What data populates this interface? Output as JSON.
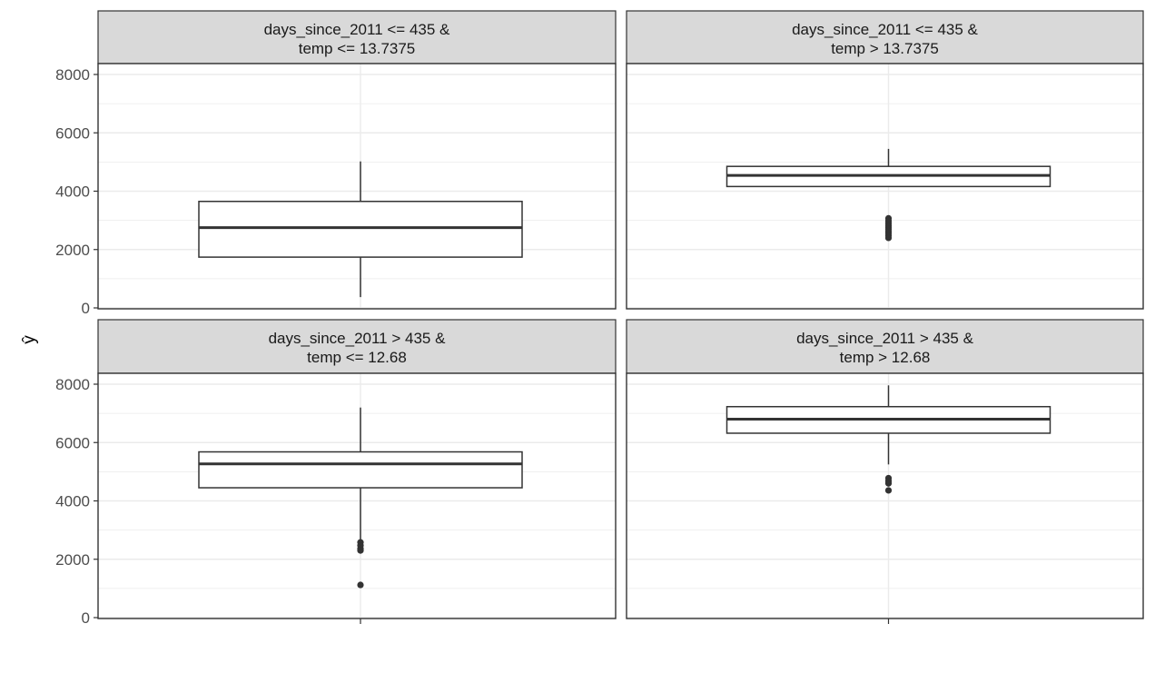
{
  "chart_data": {
    "type": "boxplot",
    "ylabel": "ŷ",
    "ylim": [
      0,
      8000
    ],
    "yticks": [
      0,
      2000,
      4000,
      6000,
      8000
    ],
    "grid": true,
    "legend": "none",
    "colors": {
      "strip_fill": "#d9d9d9",
      "panel_border": "#333333",
      "grid": "#ebebeb",
      "box_line": "#333333",
      "outlier": "#333333"
    },
    "panels": [
      {
        "strip_lines": [
          "days_since_2011 <= 435 &",
          "temp <= 13.7375"
        ],
        "box": {
          "whisker_low": 370,
          "q1": 1740,
          "median": 2750,
          "q3": 3650,
          "whisker_high": 5020
        },
        "outliers": []
      },
      {
        "strip_lines": [
          "days_since_2011 <= 435 &",
          "temp > 13.7375"
        ],
        "box": {
          "whisker_low": 4160,
          "q1": 4160,
          "median": 4540,
          "q3": 4850,
          "whisker_high": 5450
        },
        "outliers": [
          3070,
          2980,
          2900,
          2830,
          2760,
          2700,
          2620,
          2560,
          2480,
          2400
        ]
      },
      {
        "strip_lines": [
          "days_since_2011 > 435 &",
          "temp <= 12.68"
        ],
        "box": {
          "whisker_low": 2600,
          "q1": 4450,
          "median": 5270,
          "q3": 5680,
          "whisker_high": 7200
        },
        "outliers": [
          2580,
          2470,
          2360,
          2300,
          1120
        ]
      },
      {
        "strip_lines": [
          "days_since_2011 > 435 &",
          "temp > 12.68"
        ],
        "box": {
          "whisker_low": 5250,
          "q1": 6320,
          "median": 6800,
          "q3": 7230,
          "whisker_high": 7960
        },
        "outliers": [
          4780,
          4680,
          4600,
          4360
        ]
      }
    ]
  }
}
